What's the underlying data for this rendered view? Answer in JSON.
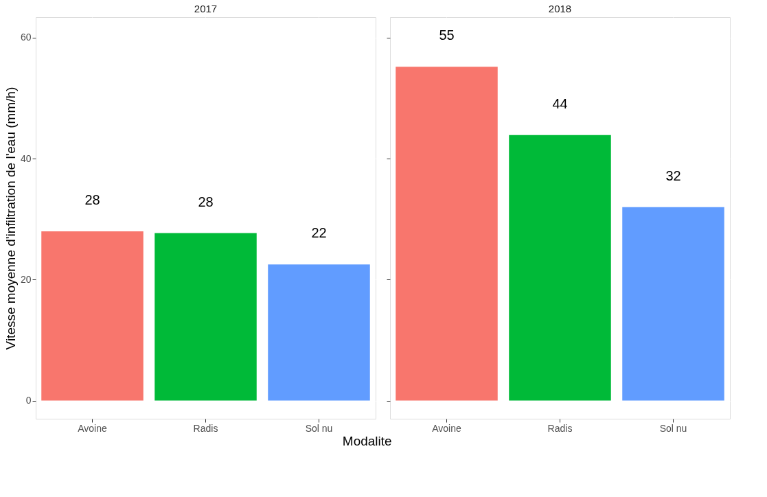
{
  "chart_data": [
    {
      "type": "bar",
      "title": "2017",
      "xlabel": "Modalite",
      "ylabel": "Vitesse moyenne d'infiltration de l'eau  (mm/h)",
      "categories": [
        "Avoine",
        "Radis",
        "Sol nu"
      ],
      "values": [
        28.0,
        27.7,
        22.5
      ],
      "colors": [
        "#f8766d",
        "#00ba38",
        "#619cff"
      ],
      "value_labels": [
        "28",
        "28",
        "22"
      ],
      "ylim": [
        -3,
        63.4
      ],
      "yticks": [
        0,
        20,
        40,
        60
      ],
      "grid": true
    },
    {
      "type": "bar",
      "title": "2018",
      "categories": [
        "Avoine",
        "Radis",
        "Sol nu"
      ],
      "values": [
        55.2,
        43.9,
        32.0
      ],
      "colors": [
        "#f8766d",
        "#00ba38",
        "#619cff"
      ],
      "value_labels": [
        "55",
        "44",
        "32"
      ],
      "ylim": [
        -3,
        63.4
      ],
      "yticks": [
        0,
        20,
        40,
        60
      ],
      "grid": true,
      "tick_labels": "x"
    }
  ]
}
